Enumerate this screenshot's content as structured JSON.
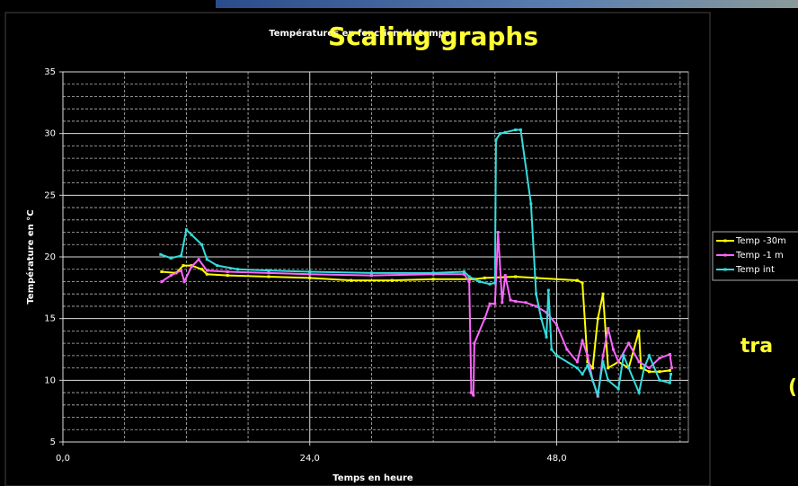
{
  "chart_data": {
    "type": "line",
    "title": "Températures en fonction du temps",
    "overlay_title": "Scaling graphs",
    "overlay_text": [
      "tra",
      "("
    ],
    "xlabel": "Temps en heure",
    "ylabel": "Température en °C",
    "xlim": [
      0,
      60.8
    ],
    "ylim": [
      5,
      35
    ],
    "xticks": [
      {
        "value": 0,
        "label": "0,0"
      },
      {
        "value": 24,
        "label": "24,0"
      },
      {
        "value": 48,
        "label": "48,0"
      }
    ],
    "yticks": [
      5,
      10,
      15,
      20,
      25,
      30,
      35
    ],
    "x_minor_grid": [
      6,
      12,
      18,
      30,
      36,
      42,
      54,
      60
    ],
    "y_minor_grid": [
      6,
      7,
      8,
      9,
      11,
      12,
      13,
      14,
      16,
      17,
      18,
      19,
      21,
      22,
      23,
      24,
      26,
      27,
      28,
      29,
      31,
      32,
      33,
      34
    ],
    "grid": true,
    "legend": "right",
    "series": [
      {
        "name": "Temp -30m",
        "color": "#ffff00",
        "x": [
          9.6,
          11,
          11.7,
          12.5,
          13.5,
          14,
          16,
          20,
          24,
          28,
          32,
          36,
          40,
          41,
          44,
          46,
          50,
          50.5,
          51,
          51.5,
          52,
          52.5,
          53,
          54,
          55,
          56,
          56.2,
          57,
          58,
          59
        ],
        "values": [
          18.8,
          18.7,
          19.3,
          19.3,
          19.0,
          18.6,
          18.5,
          18.4,
          18.3,
          18.1,
          18.1,
          18.2,
          18.2,
          18.3,
          18.4,
          18.3,
          18.1,
          17.9,
          11.5,
          11,
          15,
          17,
          11,
          11.5,
          11,
          14,
          11,
          10.7,
          10.7,
          10.8
        ]
      },
      {
        "name": "Temp -1 m",
        "color": "#ff66ff",
        "x": [
          9.6,
          10.5,
          11.5,
          11.8,
          12.5,
          13.2,
          14,
          16,
          20,
          24,
          30,
          36,
          39,
          39.5,
          39.7,
          39.9,
          40,
          41,
          41.5,
          42,
          42.3,
          42.7,
          43,
          43.5,
          44,
          45,
          46,
          47,
          48,
          49,
          50,
          50.5,
          51,
          51.5,
          52,
          52.5,
          53,
          53.5,
          54,
          55,
          56,
          57,
          58,
          59,
          59.2
        ],
        "values": [
          18.0,
          18.5,
          18.9,
          18.0,
          19.2,
          19.8,
          18.9,
          18.8,
          18.7,
          18.6,
          18.5,
          18.6,
          18.6,
          18.0,
          9.0,
          8.8,
          13,
          15,
          16.2,
          16.2,
          22,
          16.3,
          18.5,
          16.5,
          16.4,
          16.3,
          16.0,
          15.5,
          14.5,
          12.5,
          11.5,
          13.2,
          12.0,
          10,
          8.7,
          12,
          14.2,
          12.5,
          11.5,
          13,
          11.5,
          11,
          11.8,
          12.1,
          11
        ]
      },
      {
        "name": "Temp int",
        "color": "#33dddd",
        "x": [
          9.5,
          10.5,
          11.5,
          12,
          12.5,
          13.5,
          14,
          15,
          17,
          20,
          24,
          30,
          36,
          39,
          39.5,
          40.5,
          41.5,
          42,
          42.1,
          42.5,
          43,
          44,
          44.5,
          45.5,
          46,
          46.5,
          47,
          47.2,
          47.5,
          48,
          50,
          50.5,
          51,
          52,
          52.5,
          53,
          54,
          54.5,
          55,
          56,
          56.5,
          57,
          58,
          59,
          59.1
        ],
        "values": [
          20.2,
          19.9,
          20.1,
          22.2,
          21.8,
          21.0,
          19.8,
          19.3,
          19.0,
          18.9,
          18.8,
          18.7,
          18.7,
          18.8,
          18.4,
          18.0,
          17.8,
          17.9,
          29.5,
          30.0,
          30.1,
          30.3,
          30.3,
          24.3,
          17,
          15,
          13.5,
          17.3,
          12.5,
          12.0,
          11.0,
          10.5,
          11.2,
          8.8,
          11.5,
          10,
          9.3,
          12.0,
          11,
          9,
          11,
          12,
          10,
          9.8,
          10.5
        ]
      }
    ]
  }
}
